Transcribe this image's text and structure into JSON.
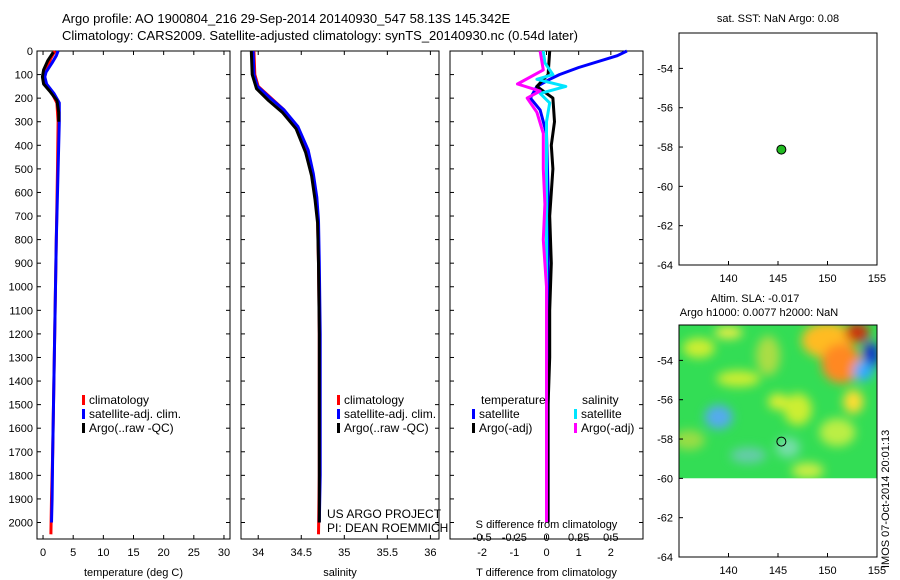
{
  "title_line1": "Argo profile: AO 1900804_216 29-Sep-2014 20140930_547 58.13S 145.342E",
  "title_line2": "Climatology: CARS2009. Satellite-adjusted climatology: synTS_20140930.nc (0.54d later)",
  "colors": {
    "clim": "#ff0000",
    "sat": "#0000ff",
    "argo": "#000000",
    "sat_s": "#00e5ff",
    "argo_s": "#ff00ff",
    "marker": "#22bb22"
  },
  "chart_data": [
    {
      "id": "temperature",
      "type": "line",
      "xlabel": "temperature (deg C)",
      "ylabel": "",
      "xlim": [
        -1,
        31
      ],
      "ylim": [
        2070,
        0
      ],
      "xticks": [
        0,
        5,
        10,
        15,
        20,
        25,
        30
      ],
      "yticks": [
        0,
        100,
        200,
        300,
        400,
        500,
        600,
        700,
        800,
        900,
        1000,
        1100,
        1200,
        1300,
        1400,
        1500,
        1600,
        1700,
        1800,
        1900,
        2000
      ],
      "legend": [
        "climatology",
        "satellite-adj. clim.",
        "Argo(..raw -QC)"
      ],
      "series": [
        {
          "name": "climatology",
          "color": "clim",
          "points": [
            [
              2.0,
              0
            ],
            [
              1.3,
              30
            ],
            [
              0.4,
              90
            ],
            [
              0.2,
              110
            ],
            [
              0.5,
              140
            ],
            [
              1.5,
              180
            ],
            [
              2.3,
              220
            ],
            [
              2.5,
              300
            ],
            [
              2.4,
              500
            ],
            [
              2.2,
              800
            ],
            [
              2.0,
              1100
            ],
            [
              1.8,
              1400
            ],
            [
              1.6,
              1700
            ],
            [
              1.4,
              1900
            ],
            [
              1.3,
              2050
            ]
          ]
        },
        {
          "name": "satellite-adj. clim.",
          "color": "sat",
          "points": [
            [
              2.5,
              0
            ],
            [
              2.2,
              20
            ],
            [
              1.5,
              50
            ],
            [
              0.5,
              90
            ],
            [
              0.3,
              110
            ],
            [
              0.6,
              140
            ],
            [
              1.8,
              180
            ],
            [
              2.7,
              220
            ],
            [
              2.7,
              300
            ],
            [
              2.5,
              500
            ],
            [
              2.2,
              800
            ],
            [
              2.0,
              1100
            ],
            [
              1.8,
              1400
            ],
            [
              1.6,
              1700
            ],
            [
              1.5,
              1900
            ],
            [
              1.4,
              2000
            ]
          ]
        },
        {
          "name": "Argo(..raw -QC)",
          "color": "argo",
          "points": [
            [
              1.7,
              5
            ],
            [
              0.8,
              40
            ],
            [
              0.1,
              80
            ],
            [
              -0.1,
              110
            ],
            [
              0.1,
              140
            ],
            [
              1.1,
              170
            ],
            [
              2.3,
              210
            ],
            [
              2.6,
              260
            ],
            [
              2.6,
              300
            ]
          ]
        }
      ]
    },
    {
      "id": "salinity",
      "type": "line",
      "xlabel": "salinity",
      "ylabel": "",
      "xlim": [
        33.8,
        36.1
      ],
      "ylim": [
        2070,
        0
      ],
      "xticks": [
        34,
        34.5,
        35,
        35.5,
        36
      ],
      "yticks": [],
      "legend": [
        "climatology",
        "satellite-adj. clim.",
        "Argo(..raw -QC)"
      ],
      "series": [
        {
          "name": "climatology",
          "color": "clim",
          "points": [
            [
              33.95,
              0
            ],
            [
              33.96,
              100
            ],
            [
              34.0,
              150
            ],
            [
              34.15,
              200
            ],
            [
              34.3,
              250
            ],
            [
              34.45,
              320
            ],
            [
              34.57,
              420
            ],
            [
              34.63,
              520
            ],
            [
              34.67,
              620
            ],
            [
              34.69,
              720
            ],
            [
              34.7,
              900
            ],
            [
              34.71,
              1200
            ],
            [
              34.71,
              1500
            ],
            [
              34.71,
              1800
            ],
            [
              34.7,
              2050
            ]
          ]
        },
        {
          "name": "satellite-adj. clim.",
          "color": "sat",
          "points": [
            [
              33.94,
              0
            ],
            [
              33.95,
              100
            ],
            [
              33.99,
              150
            ],
            [
              34.14,
              200
            ],
            [
              34.3,
              250
            ],
            [
              34.46,
              320
            ],
            [
              34.58,
              420
            ],
            [
              34.64,
              520
            ],
            [
              34.68,
              620
            ],
            [
              34.7,
              720
            ],
            [
              34.71,
              900
            ],
            [
              34.72,
              1200
            ],
            [
              34.72,
              1500
            ],
            [
              34.72,
              1800
            ],
            [
              34.71,
              2000
            ]
          ]
        },
        {
          "name": "Argo(..raw -QC)",
          "color": "argo",
          "points": [
            [
              33.92,
              0
            ],
            [
              33.93,
              100
            ],
            [
              33.98,
              160
            ],
            [
              34.12,
              210
            ],
            [
              34.28,
              260
            ],
            [
              34.44,
              330
            ],
            [
              34.55,
              430
            ],
            [
              34.62,
              530
            ],
            [
              34.66,
              630
            ],
            [
              34.69,
              730
            ],
            [
              34.7,
              900
            ],
            [
              34.71,
              1200
            ],
            [
              34.71,
              1500
            ],
            [
              34.71,
              1800
            ],
            [
              34.71,
              2000
            ]
          ]
        }
      ]
    },
    {
      "id": "difference",
      "type": "line",
      "xlabel": "T difference from climatology",
      "ylabel": "",
      "xlabel_top": "S difference from climatology",
      "xlim": [
        -3,
        3
      ],
      "ylim": [
        2070,
        0
      ],
      "xticks": [
        -2,
        -1,
        0,
        1,
        2
      ],
      "xticks_top": [
        "-0.5",
        "-0.25",
        "0",
        "0.25",
        "0.5"
      ],
      "yticks": [],
      "legend_headers": [
        "temperature",
        "salinity"
      ],
      "legend_temp": [
        "satellite",
        "Argo(-adj)"
      ],
      "legend_sal": [
        "satellite",
        "Argo(-adj)"
      ],
      "series": [
        {
          "name": "T satellite",
          "color": "sat",
          "points": [
            [
              2.5,
              0
            ],
            [
              2.2,
              20
            ],
            [
              1.0,
              70
            ],
            [
              0.4,
              100
            ],
            [
              0.1,
              120
            ],
            [
              -0.3,
              150
            ],
            [
              -0.5,
              200
            ],
            [
              -0.2,
              250
            ],
            [
              0.0,
              350
            ],
            [
              0.05,
              600
            ],
            [
              0.05,
              1000
            ],
            [
              0.05,
              1500
            ],
            [
              0.05,
              2000
            ]
          ]
        },
        {
          "name": "T Argo",
          "color": "argo",
          "points": [
            [
              0.1,
              0
            ],
            [
              0.05,
              100
            ],
            [
              -0.3,
              150
            ],
            [
              0.2,
              200
            ],
            [
              0.25,
              300
            ],
            [
              0.15,
              400
            ],
            [
              0.2,
              500
            ],
            [
              0.1,
              700
            ],
            [
              0.15,
              900
            ],
            [
              0.1,
              1100
            ],
            [
              0.1,
              1300
            ],
            [
              0.05,
              1500
            ],
            [
              0.05,
              2000
            ]
          ]
        },
        {
          "name": "S satellite",
          "color": "sat_s",
          "points": [
            [
              -0.1,
              0
            ],
            [
              -0.05,
              50
            ],
            [
              0.2,
              100
            ],
            [
              -0.3,
              120
            ],
            [
              0.6,
              150
            ],
            [
              -0.2,
              180
            ],
            [
              0.1,
              220
            ],
            [
              0.0,
              300
            ],
            [
              0.0,
              600
            ],
            [
              0.0,
              1000
            ],
            [
              0.0,
              1500
            ],
            [
              0.0,
              2000
            ]
          ]
        },
        {
          "name": "S Argo",
          "color": "argo_s",
          "points": [
            [
              -0.2,
              0
            ],
            [
              -0.1,
              80
            ],
            [
              -0.9,
              140
            ],
            [
              -0.2,
              170
            ],
            [
              -0.6,
              200
            ],
            [
              -0.3,
              260
            ],
            [
              -0.1,
              350
            ],
            [
              -0.1,
              500
            ],
            [
              -0.05,
              650
            ],
            [
              -0.1,
              800
            ],
            [
              0.0,
              1000
            ],
            [
              0.0,
              1500
            ],
            [
              0.0,
              2000
            ]
          ]
        }
      ]
    },
    {
      "id": "sst_map",
      "type": "scatter",
      "title": "sat. SST: NaN Argo: 0.08",
      "xlim": [
        135,
        155
      ],
      "ylim": [
        -64,
        -52.2
      ],
      "xticks": [
        140,
        145,
        150,
        155
      ],
      "yticks": [
        -54,
        -56,
        -58,
        -60,
        -62,
        -64
      ],
      "points": [
        [
          145.34,
          -58.13
        ]
      ]
    },
    {
      "id": "sla_map",
      "type": "heatmap",
      "title_line1": "Altim. SLA: -0.017",
      "title_line2": "Argo h1000: 0.0077 h2000: NaN",
      "xlim": [
        135,
        155
      ],
      "ylim": [
        -64,
        -52.2
      ],
      "xticks": [
        140,
        145,
        150,
        155
      ],
      "yticks": [
        -54,
        -56,
        -58,
        -60,
        -62,
        -64
      ],
      "points": [
        [
          145.34,
          -58.13
        ]
      ]
    }
  ],
  "annotation": [
    "US ARGO PROJECT",
    "PI: DEAN ROEMMICH"
  ],
  "credit": "IMOS 07-Oct-2014 20:01:13"
}
